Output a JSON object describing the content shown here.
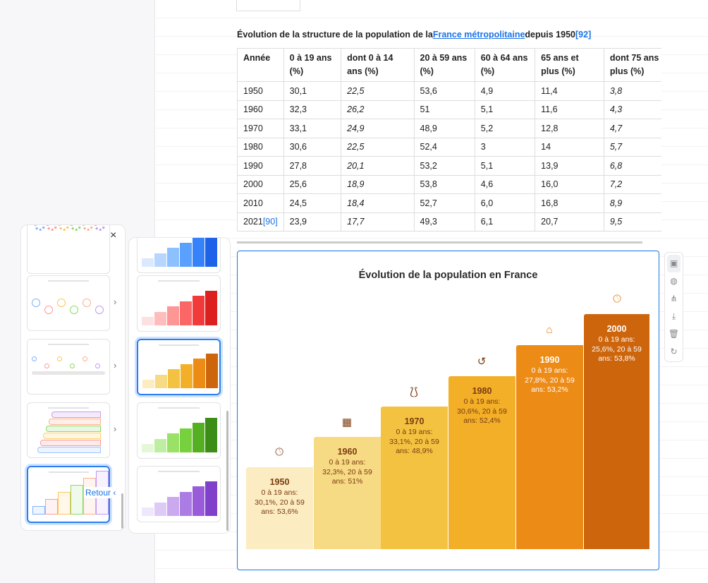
{
  "caption": {
    "text": "Évolution de la structure de la population de la",
    "link": "France métropolitaine",
    "after": "depuis 1950",
    "ref": "[92]"
  },
  "table": {
    "headers": [
      "Année",
      "0 à 19 ans (%)",
      "dont 0 à 14 ans (%)",
      "20 à 59 ans (%)",
      "60 à 64 ans (%)",
      "65 ans et plus (%)",
      "dont 75 ans et plus (%)"
    ],
    "rows": [
      [
        "1950",
        "30,1",
        "22,5",
        "53,6",
        "4,9",
        "11,4",
        "3,8"
      ],
      [
        "1960",
        "32,3",
        "26,2",
        "51",
        "5,1",
        "11,6",
        "4,3"
      ],
      [
        "1970",
        "33,1",
        "24,9",
        "48,9",
        "5,2",
        "12,8",
        "4,7"
      ],
      [
        "1980",
        "30,6",
        "22,5",
        "52,4",
        "3",
        "14",
        "5,7"
      ],
      [
        "1990",
        "27,8",
        "20,1",
        "53,2",
        "5,1",
        "13,9",
        "6,8"
      ],
      [
        "2000",
        "25,6",
        "18,9",
        "53,8",
        "4,6",
        "16,0",
        "7,2"
      ],
      [
        "2010",
        "24,5",
        "18,4",
        "52,7",
        "6,0",
        "16,8",
        "8,9"
      ],
      [
        "2021",
        "23,9",
        "17,7",
        "49,3",
        "6,1",
        "20,7",
        "9,5"
      ]
    ],
    "last_row_ref": "[90]"
  },
  "infographic": {
    "title": "Évolution de la population en France",
    "steps": [
      {
        "year": "1950",
        "text": "0 à 19 ans: 30,1%, 20 à 59 ans: 53,6%",
        "icon": "clock-icon",
        "color": "#fcecc2",
        "text_color": "#7a3b10"
      },
      {
        "year": "1960",
        "text": "0 à 19 ans: 32,3%, 20 à 59 ans: 51%",
        "icon": "calendar-icon",
        "color": "#f7da84",
        "text_color": "#7a3b10"
      },
      {
        "year": "1970",
        "text": "0 à 19 ans: 33,1%, 20 à 59 ans: 48,9%",
        "icon": "uterus-icon",
        "color": "#f4c241",
        "text_color": "#7a3b10"
      },
      {
        "year": "1980",
        "text": "0 à 19 ans: 30,6%, 20 à 59 ans: 52,4%",
        "icon": "history-icon",
        "color": "#f2af27",
        "text_color": "#7a3b10"
      },
      {
        "year": "1990",
        "text": "0 à 19 ans: 27,8%, 20 à 59 ans: 53,2%",
        "icon": "school-icon",
        "color": "#ed8b17",
        "text_color": "#ffffff"
      },
      {
        "year": "2000",
        "text": "0 à 19 ans: 25,6%, 20 à 59 ans: 53,8%",
        "icon": "clock-icon",
        "color": "#cd650c",
        "text_color": "#ffffff"
      }
    ]
  },
  "toolbar": [
    "ai-edit-icon",
    "palette-icon",
    "layout-icon",
    "download-icon",
    "trash-icon",
    "refresh-icon"
  ],
  "panel": {
    "close": "×",
    "back_label": "Retour",
    "chevron": "›",
    "back_chevron": "‹"
  },
  "palettes": [
    {
      "name": "blue",
      "colors": [
        "#dbe9ff",
        "#b7d6ff",
        "#8cc0ff",
        "#5aa0ff",
        "#3582fb",
        "#1f62ea"
      ]
    },
    {
      "name": "red",
      "colors": [
        "#fde0e0",
        "#ffbcbc",
        "#ff9696",
        "#fb6767",
        "#f33a3a",
        "#dc1f1f"
      ]
    },
    {
      "name": "orange",
      "colors": [
        "#fcecc2",
        "#f7da84",
        "#f4c241",
        "#f2af27",
        "#ed8b17",
        "#cd650c"
      ]
    },
    {
      "name": "green",
      "colors": [
        "#e3f8d7",
        "#bfeea3",
        "#99e266",
        "#77d03e",
        "#55b021",
        "#3c8d18"
      ]
    },
    {
      "name": "purple",
      "colors": [
        "#efe7fb",
        "#ddcbf6",
        "#caa9ef",
        "#ab7ce3",
        "#9a5bdb",
        "#8040c9"
      ]
    }
  ]
}
